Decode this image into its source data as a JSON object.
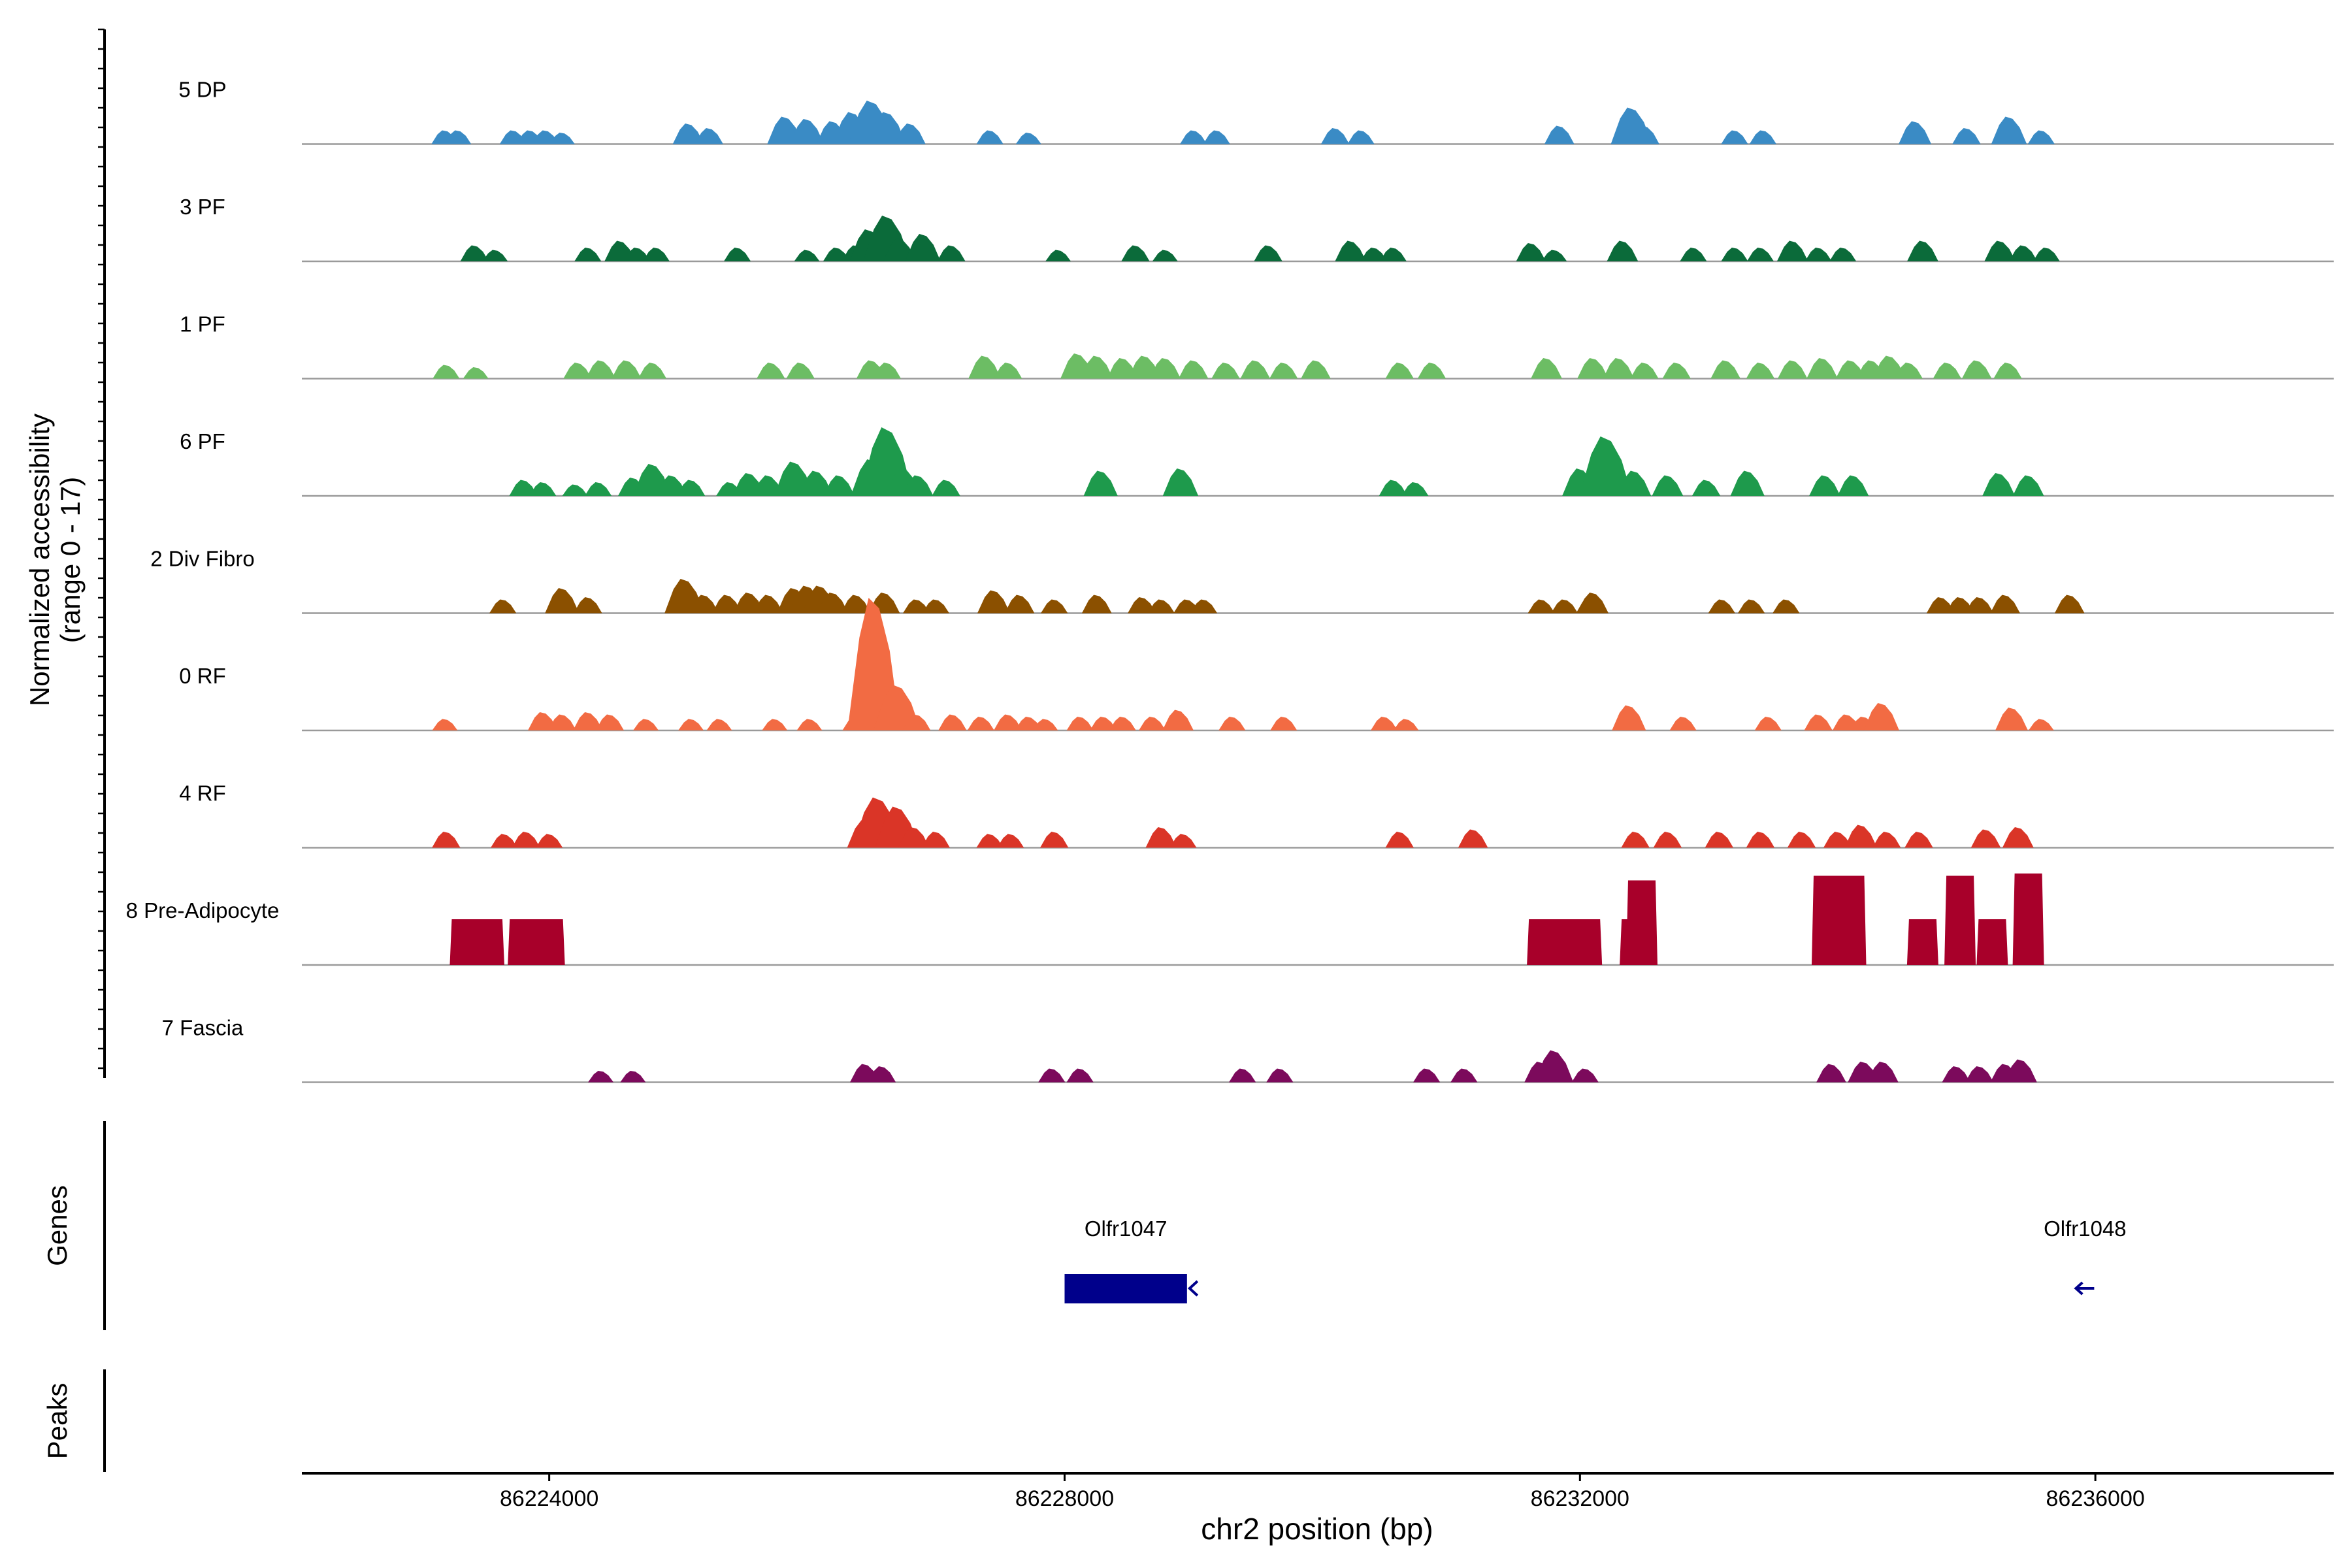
{
  "chart_data": {
    "type": "area",
    "subtype": "genome-coverage-track",
    "x_label": "chr2 position (bp)",
    "y_label_line1": "Normalized accessibility",
    "y_label_line2": "(range 0 - 17)",
    "y_range": [
      0,
      17
    ],
    "x_range": [
      86222080,
      86237850
    ],
    "x_ticks": [
      {
        "value": 86224000,
        "label": "86224000"
      },
      {
        "value": 86228000,
        "label": "86228000"
      },
      {
        "value": 86232000,
        "label": "86232000"
      },
      {
        "value": 86236000,
        "label": "86236000"
      }
    ],
    "tracks": [
      {
        "name": "5 DP",
        "color": "#3A8BC5",
        "peaks": [
          [
            86223190,
            0.3
          ],
          [
            86223290,
            0.3
          ],
          [
            86223720,
            0.3
          ],
          [
            86223850,
            0.3
          ],
          [
            86223970,
            0.3
          ],
          [
            86224100,
            0.25
          ],
          [
            86225080,
            0.45
          ],
          [
            86225240,
            0.35
          ],
          [
            86225830,
            0.6
          ],
          [
            86226000,
            0.55
          ],
          [
            86226200,
            0.5
          ],
          [
            86226350,
            0.7
          ],
          [
            86226500,
            0.95
          ],
          [
            86226620,
            0.7
          ],
          [
            86226800,
            0.45
          ],
          [
            86227420,
            0.3
          ],
          [
            86227720,
            0.25
          ],
          [
            86229000,
            0.3
          ],
          [
            86229180,
            0.3
          ],
          [
            86230100,
            0.35
          ],
          [
            86230300,
            0.3
          ],
          [
            86231840,
            0.4
          ],
          [
            86232400,
            0.8
          ],
          [
            86232500,
            0.4
          ],
          [
            86233200,
            0.3
          ],
          [
            86233420,
            0.3
          ],
          [
            86234600,
            0.5
          ],
          [
            86235000,
            0.35
          ],
          [
            86235330,
            0.6
          ],
          [
            86235580,
            0.3
          ]
        ]
      },
      {
        "name": "3 PF",
        "color": "#0B6B3A",
        "peaks": [
          [
            86223420,
            0.35
          ],
          [
            86223580,
            0.25
          ],
          [
            86224300,
            0.3
          ],
          [
            86224550,
            0.45
          ],
          [
            86224680,
            0.3
          ],
          [
            86224830,
            0.3
          ],
          [
            86225460,
            0.3
          ],
          [
            86226000,
            0.25
          ],
          [
            86226230,
            0.3
          ],
          [
            86226380,
            0.35
          ],
          [
            86226480,
            0.7
          ],
          [
            86226620,
            1.0
          ],
          [
            86226720,
            0.5
          ],
          [
            86226900,
            0.6
          ],
          [
            86227120,
            0.35
          ],
          [
            86227950,
            0.25
          ],
          [
            86228550,
            0.35
          ],
          [
            86228780,
            0.25
          ],
          [
            86229580,
            0.35
          ],
          [
            86230220,
            0.45
          ],
          [
            86230400,
            0.3
          ],
          [
            86230550,
            0.3
          ],
          [
            86231620,
            0.4
          ],
          [
            86231800,
            0.25
          ],
          [
            86232330,
            0.45
          ],
          [
            86232880,
            0.3
          ],
          [
            86233200,
            0.3
          ],
          [
            86233400,
            0.3
          ],
          [
            86233650,
            0.45
          ],
          [
            86233850,
            0.3
          ],
          [
            86234040,
            0.3
          ],
          [
            86234660,
            0.45
          ],
          [
            86235260,
            0.45
          ],
          [
            86235440,
            0.35
          ],
          [
            86235620,
            0.3
          ]
        ]
      },
      {
        "name": "1 PF",
        "color": "#6CBD64",
        "peaks": [
          [
            86223200,
            0.3
          ],
          [
            86223430,
            0.25
          ],
          [
            86224220,
            0.35
          ],
          [
            86224400,
            0.4
          ],
          [
            86224600,
            0.4
          ],
          [
            86224800,
            0.35
          ],
          [
            86225720,
            0.35
          ],
          [
            86225950,
            0.35
          ],
          [
            86226500,
            0.4
          ],
          [
            86226620,
            0.35
          ],
          [
            86227380,
            0.5
          ],
          [
            86227560,
            0.35
          ],
          [
            86228100,
            0.55
          ],
          [
            86228250,
            0.5
          ],
          [
            86228450,
            0.45
          ],
          [
            86228620,
            0.5
          ],
          [
            86228780,
            0.45
          ],
          [
            86229000,
            0.4
          ],
          [
            86229250,
            0.35
          ],
          [
            86229480,
            0.4
          ],
          [
            86229700,
            0.35
          ],
          [
            86229950,
            0.4
          ],
          [
            86230600,
            0.35
          ],
          [
            86230850,
            0.35
          ],
          [
            86231740,
            0.45
          ],
          [
            86232100,
            0.45
          ],
          [
            86232300,
            0.45
          ],
          [
            86232500,
            0.35
          ],
          [
            86232750,
            0.35
          ],
          [
            86233130,
            0.4
          ],
          [
            86233400,
            0.35
          ],
          [
            86233650,
            0.4
          ],
          [
            86233880,
            0.45
          ],
          [
            86234100,
            0.4
          ],
          [
            86234260,
            0.4
          ],
          [
            86234400,
            0.5
          ],
          [
            86234550,
            0.35
          ],
          [
            86234850,
            0.35
          ],
          [
            86235080,
            0.4
          ],
          [
            86235320,
            0.35
          ]
        ]
      },
      {
        "name": "6 PF",
        "color": "#1E9A4C",
        "peaks": [
          [
            86223800,
            0.35
          ],
          [
            86223950,
            0.3
          ],
          [
            86224200,
            0.25
          ],
          [
            86224380,
            0.3
          ],
          [
            86224650,
            0.4
          ],
          [
            86224800,
            0.7
          ],
          [
            86224950,
            0.45
          ],
          [
            86225100,
            0.35
          ],
          [
            86225400,
            0.3
          ],
          [
            86225550,
            0.5
          ],
          [
            86225700,
            0.45
          ],
          [
            86225900,
            0.75
          ],
          [
            86226070,
            0.55
          ],
          [
            86226250,
            0.45
          ],
          [
            86226500,
            0.8
          ],
          [
            86226620,
            1.5
          ],
          [
            86226750,
            0.6
          ],
          [
            86226860,
            0.45
          ],
          [
            86227080,
            0.35
          ],
          [
            86228280,
            0.55
          ],
          [
            86228900,
            0.6
          ],
          [
            86230550,
            0.35
          ],
          [
            86230720,
            0.3
          ],
          [
            86232000,
            0.6
          ],
          [
            86232130,
            0.7
          ],
          [
            86232200,
            1.3
          ],
          [
            86232420,
            0.55
          ],
          [
            86232680,
            0.45
          ],
          [
            86232980,
            0.35
          ],
          [
            86233300,
            0.55
          ],
          [
            86233900,
            0.45
          ],
          [
            86234120,
            0.45
          ],
          [
            86235250,
            0.5
          ],
          [
            86235480,
            0.45
          ]
        ]
      },
      {
        "name": "2 Div Fibro",
        "color": "#8B5000",
        "peaks": [
          [
            86223640,
            0.3
          ],
          [
            86224100,
            0.55
          ],
          [
            86224300,
            0.35
          ],
          [
            86225050,
            0.75
          ],
          [
            86225200,
            0.4
          ],
          [
            86225380,
            0.4
          ],
          [
            86225550,
            0.45
          ],
          [
            86225700,
            0.4
          ],
          [
            86225900,
            0.55
          ],
          [
            86226000,
            0.6
          ],
          [
            86226100,
            0.6
          ],
          [
            86226200,
            0.45
          ],
          [
            86226380,
            0.4
          ],
          [
            86226600,
            0.45
          ],
          [
            86226850,
            0.3
          ],
          [
            86227000,
            0.3
          ],
          [
            86227450,
            0.5
          ],
          [
            86227650,
            0.4
          ],
          [
            86227920,
            0.3
          ],
          [
            86228250,
            0.4
          ],
          [
            86228600,
            0.35
          ],
          [
            86228750,
            0.3
          ],
          [
            86228950,
            0.3
          ],
          [
            86229080,
            0.3
          ],
          [
            86231700,
            0.3
          ],
          [
            86231880,
            0.3
          ],
          [
            86232080,
            0.35
          ],
          [
            86232100,
            0.45
          ],
          [
            86233100,
            0.3
          ],
          [
            86233330,
            0.3
          ],
          [
            86233600,
            0.3
          ],
          [
            86234800,
            0.35
          ],
          [
            86234950,
            0.35
          ],
          [
            86235100,
            0.35
          ],
          [
            86235300,
            0.4
          ],
          [
            86235800,
            0.4
          ]
        ]
      },
      {
        "name": "0 RF",
        "color": "#F26B43",
        "peaks": [
          [
            86223190,
            0.25
          ],
          [
            86223950,
            0.4
          ],
          [
            86224100,
            0.35
          ],
          [
            86224300,
            0.4
          ],
          [
            86224470,
            0.35
          ],
          [
            86224750,
            0.25
          ],
          [
            86225100,
            0.25
          ],
          [
            86225320,
            0.25
          ],
          [
            86225750,
            0.25
          ],
          [
            86226020,
            0.25
          ],
          [
            86226380,
            0.3
          ],
          [
            86226520,
            2.9
          ],
          [
            86226700,
            1.0
          ],
          [
            86226850,
            0.35
          ],
          [
            86227130,
            0.35
          ],
          [
            86227350,
            0.3
          ],
          [
            86227560,
            0.35
          ],
          [
            86227720,
            0.3
          ],
          [
            86227850,
            0.25
          ],
          [
            86228120,
            0.3
          ],
          [
            86228300,
            0.3
          ],
          [
            86228450,
            0.3
          ],
          [
            86228680,
            0.3
          ],
          [
            86228880,
            0.45
          ],
          [
            86229300,
            0.3
          ],
          [
            86229700,
            0.3
          ],
          [
            86230480,
            0.3
          ],
          [
            86230650,
            0.25
          ],
          [
            86232380,
            0.55
          ],
          [
            86232800,
            0.3
          ],
          [
            86233460,
            0.3
          ],
          [
            86233850,
            0.35
          ],
          [
            86234070,
            0.35
          ],
          [
            86234200,
            0.3
          ],
          [
            86234340,
            0.6
          ],
          [
            86235350,
            0.5
          ],
          [
            86235580,
            0.25
          ]
        ]
      },
      {
        "name": "4 RF",
        "color": "#DA3527",
        "peaks": [
          [
            86223200,
            0.35
          ],
          [
            86223650,
            0.3
          ],
          [
            86223820,
            0.35
          ],
          [
            86224000,
            0.3
          ],
          [
            86226450,
            0.6
          ],
          [
            86226550,
            1.1
          ],
          [
            86226700,
            0.9
          ],
          [
            86226830,
            0.45
          ],
          [
            86227000,
            0.35
          ],
          [
            86227420,
            0.3
          ],
          [
            86227580,
            0.3
          ],
          [
            86227920,
            0.35
          ],
          [
            86228750,
            0.45
          ],
          [
            86228920,
            0.3
          ],
          [
            86230600,
            0.35
          ],
          [
            86231170,
            0.4
          ],
          [
            86232430,
            0.35
          ],
          [
            86232680,
            0.35
          ],
          [
            86233080,
            0.35
          ],
          [
            86233400,
            0.35
          ],
          [
            86233720,
            0.35
          ],
          [
            86234000,
            0.35
          ],
          [
            86234180,
            0.5
          ],
          [
            86234380,
            0.35
          ],
          [
            86234630,
            0.35
          ],
          [
            86235150,
            0.4
          ],
          [
            86235400,
            0.45
          ]
        ]
      },
      {
        "name": "8 Pre-Adipocyte",
        "color": "#A8002A",
        "peaks": [
          [
            86223350,
            1.0
          ],
          [
            86223530,
            1.0
          ],
          [
            86223800,
            1.0
          ],
          [
            86224000,
            1.0
          ],
          [
            86231710,
            1.0
          ],
          [
            86231850,
            1.0
          ],
          [
            86232050,
            1.0
          ],
          [
            86232430,
            1.0
          ],
          [
            86232480,
            1.85
          ],
          [
            86233920,
            1.95
          ],
          [
            86234100,
            1.95
          ],
          [
            86234660,
            1.0
          ],
          [
            86234950,
            1.95
          ],
          [
            86235200,
            1.0
          ],
          [
            86235480,
            2.0
          ]
        ]
      },
      {
        "name": "7 Fascia",
        "color": "#7C0A5C",
        "peaks": [
          [
            86224400,
            0.25
          ],
          [
            86224650,
            0.25
          ],
          [
            86226450,
            0.4
          ],
          [
            86226580,
            0.35
          ],
          [
            86227900,
            0.3
          ],
          [
            86228120,
            0.3
          ],
          [
            86229380,
            0.3
          ],
          [
            86229670,
            0.3
          ],
          [
            86230810,
            0.3
          ],
          [
            86231100,
            0.3
          ],
          [
            86231690,
            0.45
          ],
          [
            86231800,
            0.7
          ],
          [
            86232040,
            0.3
          ],
          [
            86233950,
            0.4
          ],
          [
            86234200,
            0.45
          ],
          [
            86234350,
            0.45
          ],
          [
            86234920,
            0.35
          ],
          [
            86235100,
            0.35
          ],
          [
            86235300,
            0.4
          ],
          [
            86235420,
            0.5
          ]
        ]
      }
    ],
    "genes_label": "Genes",
    "peaks_label": "Peaks",
    "genes": [
      {
        "name": "Olfr1047",
        "start": 86228000,
        "end": 86228950,
        "strand": "-",
        "color": "#00008B"
      },
      {
        "name": "Olfr1048",
        "start": 86235880,
        "end": 86235960,
        "strand": "-",
        "color": "#00008B"
      }
    ]
  }
}
